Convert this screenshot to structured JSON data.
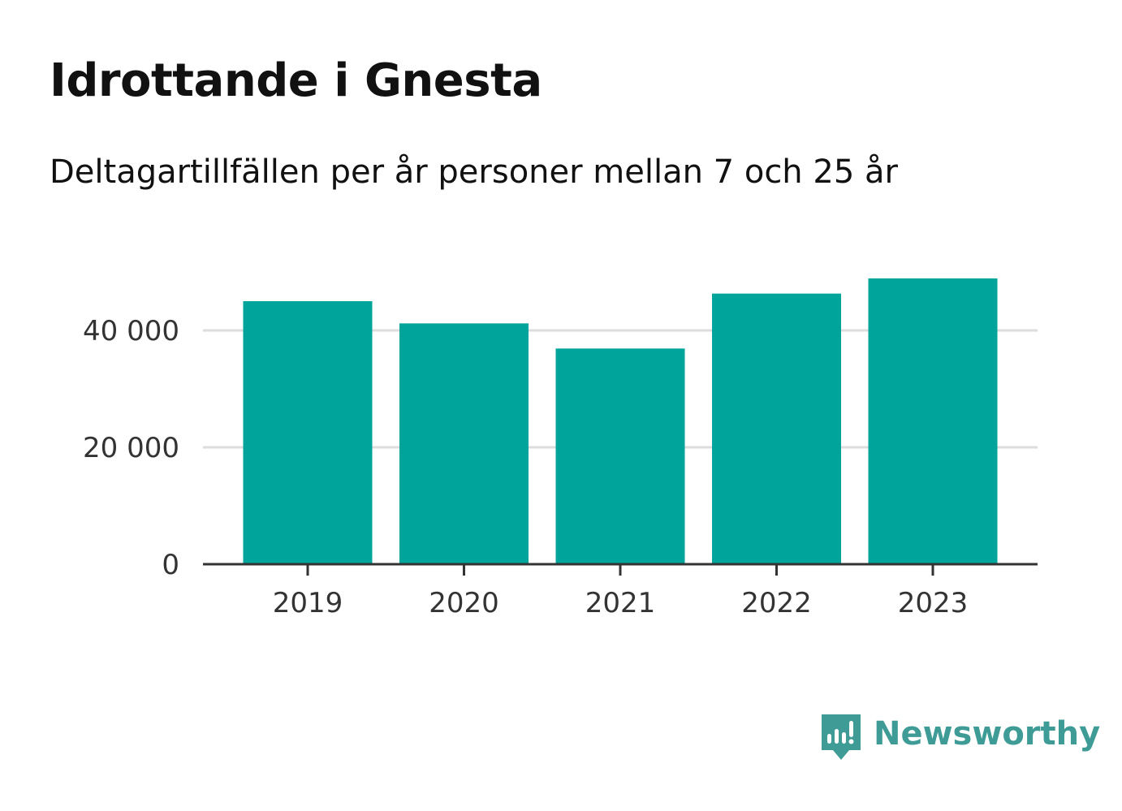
{
  "title": "Idrottande i Gnesta",
  "subtitle": "Deltagartillfällen per år personer mellan 7 och 25 år",
  "brand": {
    "name": "Newsworthy",
    "icon": "newsworthy-logo-icon",
    "color": "#3f9b96"
  },
  "colors": {
    "bar": "#00a49a",
    "grid": "#dddddd",
    "axis": "#333333"
  },
  "chart_data": {
    "type": "bar",
    "categories": [
      "2019",
      "2020",
      "2021",
      "2022",
      "2023"
    ],
    "values": [
      45000,
      41200,
      36900,
      46300,
      48900
    ],
    "yticks": [
      0,
      20000,
      40000
    ],
    "ytick_labels": [
      "0",
      "20 000",
      "40 000"
    ],
    "ylim": [
      0,
      50000
    ],
    "grid": true,
    "legend": "none"
  }
}
